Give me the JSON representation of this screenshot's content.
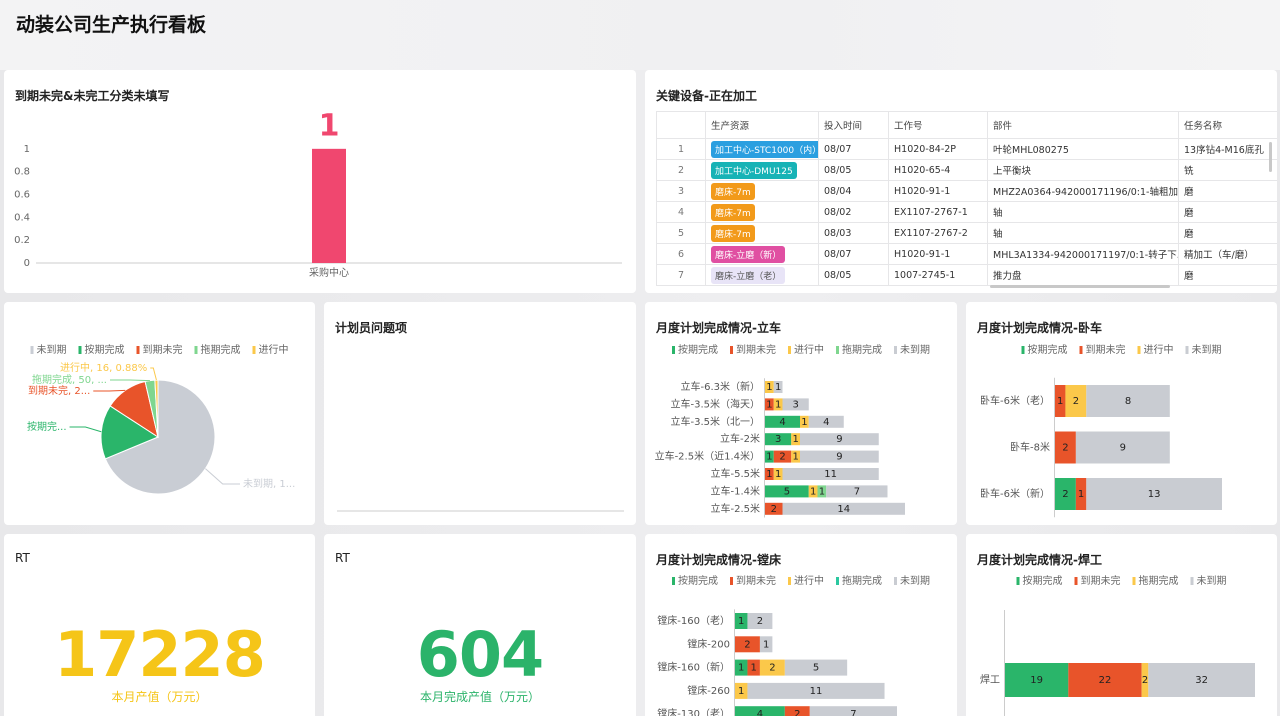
{
  "header": {
    "title": "动装公司生产执行看板"
  },
  "chart_data": [
    {
      "type": "bar",
      "title": "到期未完&未完工分类未填写",
      "categories": [
        "采购中心"
      ],
      "values": [
        1
      ],
      "color": "#f0476f",
      "ylim": [
        0,
        1.2
      ],
      "yticks": [
        0,
        0.2,
        0.4,
        0.6,
        0.8,
        1
      ],
      "grid": false
    },
    {
      "type": "pie",
      "categories": [
        "未到期",
        "按期完成",
        "到期未完",
        "拖期完成",
        "进行中"
      ],
      "values": [
        1250,
        280,
        222,
        50,
        16
      ],
      "value_labels": [
        "未到期, 1...",
        "按期完...",
        "到期未完, 2...",
        "拖期完成, 50, ...",
        "进行中, 16, 0.88%"
      ],
      "colors": [
        "#c9cdd4",
        "#2ab56a",
        "#e8542a",
        "#7fd68f",
        "#fbc84a"
      ]
    },
    {
      "type": "blank",
      "title": "计划员问题项"
    },
    {
      "type": "stackedbar",
      "title": "月度计划完成情况-立车",
      "categories": [
        "立车-6.3米（新）",
        "立车-3.5米（海天）",
        "立车-3.5米（北一）",
        "立车-2米",
        "立车-2.5米（近1.4米）",
        "立车-5.5米",
        "立车-1.4米",
        "立车-2.5米"
      ],
      "series": [
        {
          "name": "按期完成",
          "color": "#2ab56a",
          "values": [
            null,
            null,
            4,
            3,
            1,
            null,
            5,
            null
          ]
        },
        {
          "name": "到期未完",
          "color": "#e8542a",
          "values": [
            null,
            1,
            null,
            null,
            2,
            1,
            null,
            2
          ]
        },
        {
          "name": "进行中",
          "color": "#fbc84a",
          "values": [
            1,
            1,
            1,
            1,
            1,
            1,
            1,
            null
          ]
        },
        {
          "name": "拖期完成",
          "color": "#7fd68f",
          "values": [
            null,
            null,
            null,
            null,
            null,
            null,
            1,
            null
          ]
        },
        {
          "name": "未到期",
          "color": "#c9ccd2",
          "values": [
            1,
            3,
            4,
            9,
            9,
            11,
            7,
            14
          ]
        }
      ]
    },
    {
      "type": "stackedbar",
      "title": "月度计划完成情况-卧车",
      "categories": [
        "卧车-6米（老）",
        "卧车-8米",
        "卧车-6米（新）"
      ],
      "series": [
        {
          "name": "按期完成",
          "color": "#2ab56a",
          "values": [
            null,
            null,
            2
          ]
        },
        {
          "name": "到期未完",
          "color": "#e8542a",
          "values": [
            1,
            2,
            1
          ]
        },
        {
          "name": "进行中",
          "color": "#fbc84a",
          "values": [
            2,
            null,
            null
          ]
        },
        {
          "name": "未到期",
          "color": "#c9ccd2",
          "values": [
            8,
            9,
            13
          ]
        }
      ]
    },
    {
      "type": "stackedbar",
      "title": "月度计划完成情况-镗床",
      "categories": [
        "镗床-160（老）",
        "镗床-200",
        "镗床-160（新）",
        "镗床-260",
        "镗床-130（老）"
      ],
      "series": [
        {
          "name": "按期完成",
          "color": "#2ab56a",
          "values": [
            1,
            null,
            1,
            null,
            4
          ]
        },
        {
          "name": "到期未完",
          "color": "#e8542a",
          "values": [
            null,
            2,
            1,
            null,
            2
          ]
        },
        {
          "name": "进行中",
          "color": "#fbc84a",
          "values": [
            null,
            null,
            2,
            1,
            null
          ]
        },
        {
          "name": "拖期完成",
          "color": "#2bc8a0",
          "values": [
            null,
            null,
            null,
            null,
            null
          ]
        },
        {
          "name": "未到期",
          "color": "#c9ccd2",
          "values": [
            2,
            1,
            5,
            11,
            7
          ]
        }
      ]
    },
    {
      "type": "stackedbar",
      "title": "月度计划完成情况-焊工",
      "categories": [
        "焊工"
      ],
      "series": [
        {
          "name": "按期完成",
          "color": "#2ab56a",
          "values": [
            19
          ]
        },
        {
          "name": "到期未完",
          "color": "#e8542a",
          "values": [
            22
          ]
        },
        {
          "name": "拖期完成",
          "color": "#fbc84a",
          "values": [
            2
          ]
        },
        {
          "name": "未到期",
          "color": "#c9ccd2",
          "values": [
            32
          ]
        }
      ]
    }
  ],
  "table": {
    "title": "关键设备-正在加工",
    "columns": [
      "生产资源",
      "投入时间",
      "工作号",
      "部件",
      "任务名称"
    ],
    "rows": [
      [
        1,
        "加工中心-STC1000（内）",
        "08/07",
        "H1020-84-2P",
        "叶轮MHL080275",
        "13序钻4-M16底孔"
      ],
      [
        2,
        "加工中心-DMU125",
        "08/05",
        "H1020-65-4",
        "上平衡块",
        "铣"
      ],
      [
        3,
        "磨床-7m",
        "08/04",
        "H1020-91-1",
        "MHZ2A0364-942000171196/0:1-轴粗加...",
        "磨"
      ],
      [
        4,
        "磨床-7m",
        "08/02",
        "EX1107-2767-1",
        "轴",
        "磨"
      ],
      [
        5,
        "磨床-7m",
        "08/03",
        "EX1107-2767-2",
        "轴",
        "磨"
      ],
      [
        6,
        "磨床-立磨（新）",
        "08/07",
        "H1020-91-1",
        "MHL3A1334-942000171197/0:1-转子下...",
        "精加工（车/磨）"
      ],
      [
        7,
        "磨床-立磨（老）",
        "08/05",
        "1007-2745-1",
        "推力盘",
        "磨"
      ]
    ],
    "tag_colors": [
      "#2b9fe0",
      "#17b3b6",
      "#f29a1a",
      "#f29a1a",
      "#f29a1a",
      "#e04fa2",
      "#e8e4f7"
    ],
    "tag_text_colors": [
      "#ffffff",
      "#ffffff",
      "#ffffff",
      "#ffffff",
      "#ffffff",
      "#ffffff",
      "#555555"
    ]
  },
  "kpis": [
    {
      "title": "RT",
      "value": 17228,
      "label": "本月产值（万元）",
      "color": "#f5c518"
    },
    {
      "title": "RT",
      "value": 604,
      "label": "本月完成产值（万元）",
      "color": "#2bb36a"
    }
  ]
}
